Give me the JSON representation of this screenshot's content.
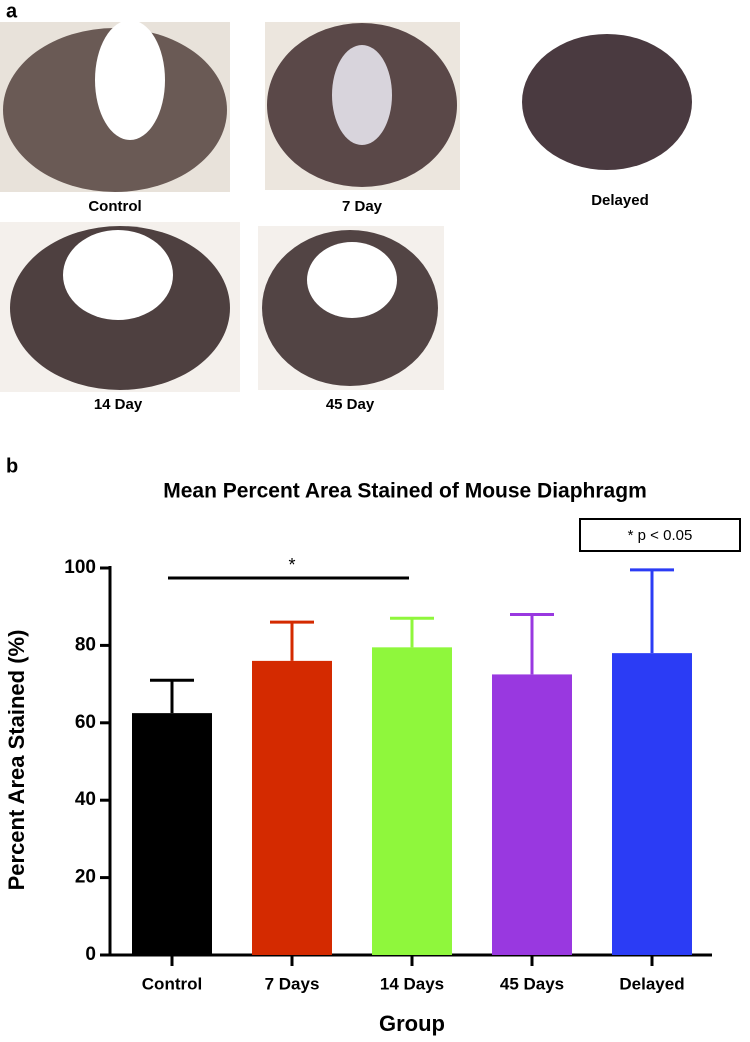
{
  "panels": {
    "a": "a",
    "b": "b"
  },
  "photos": [
    {
      "caption": "Control"
    },
    {
      "caption": "7 Day"
    },
    {
      "caption": "Delayed"
    },
    {
      "caption": "14 Day"
    },
    {
      "caption": "45 Day"
    }
  ],
  "chart_data": {
    "type": "bar",
    "title": "Mean Percent Area Stained of Mouse Diaphragm",
    "x_label": "Group",
    "y_label": "Percent Area Stained (%)",
    "categories": [
      "Control",
      "7 Days",
      "14 Days",
      "45 Days",
      "Delayed"
    ],
    "values": [
      62.5,
      76,
      79.5,
      72.5,
      78
    ],
    "errors": [
      8.5,
      10,
      7.5,
      15.5,
      21.5
    ],
    "colors": [
      "#000000",
      "#d42a00",
      "#8ff73c",
      "#9938e0",
      "#2b3cf5"
    ],
    "ylim": [
      0,
      100
    ],
    "yticks": [
      0,
      20,
      40,
      60,
      80,
      100
    ],
    "significance": {
      "text": "*",
      "from": "Control",
      "to": "14 Days"
    },
    "note": "* p < 0.05"
  }
}
